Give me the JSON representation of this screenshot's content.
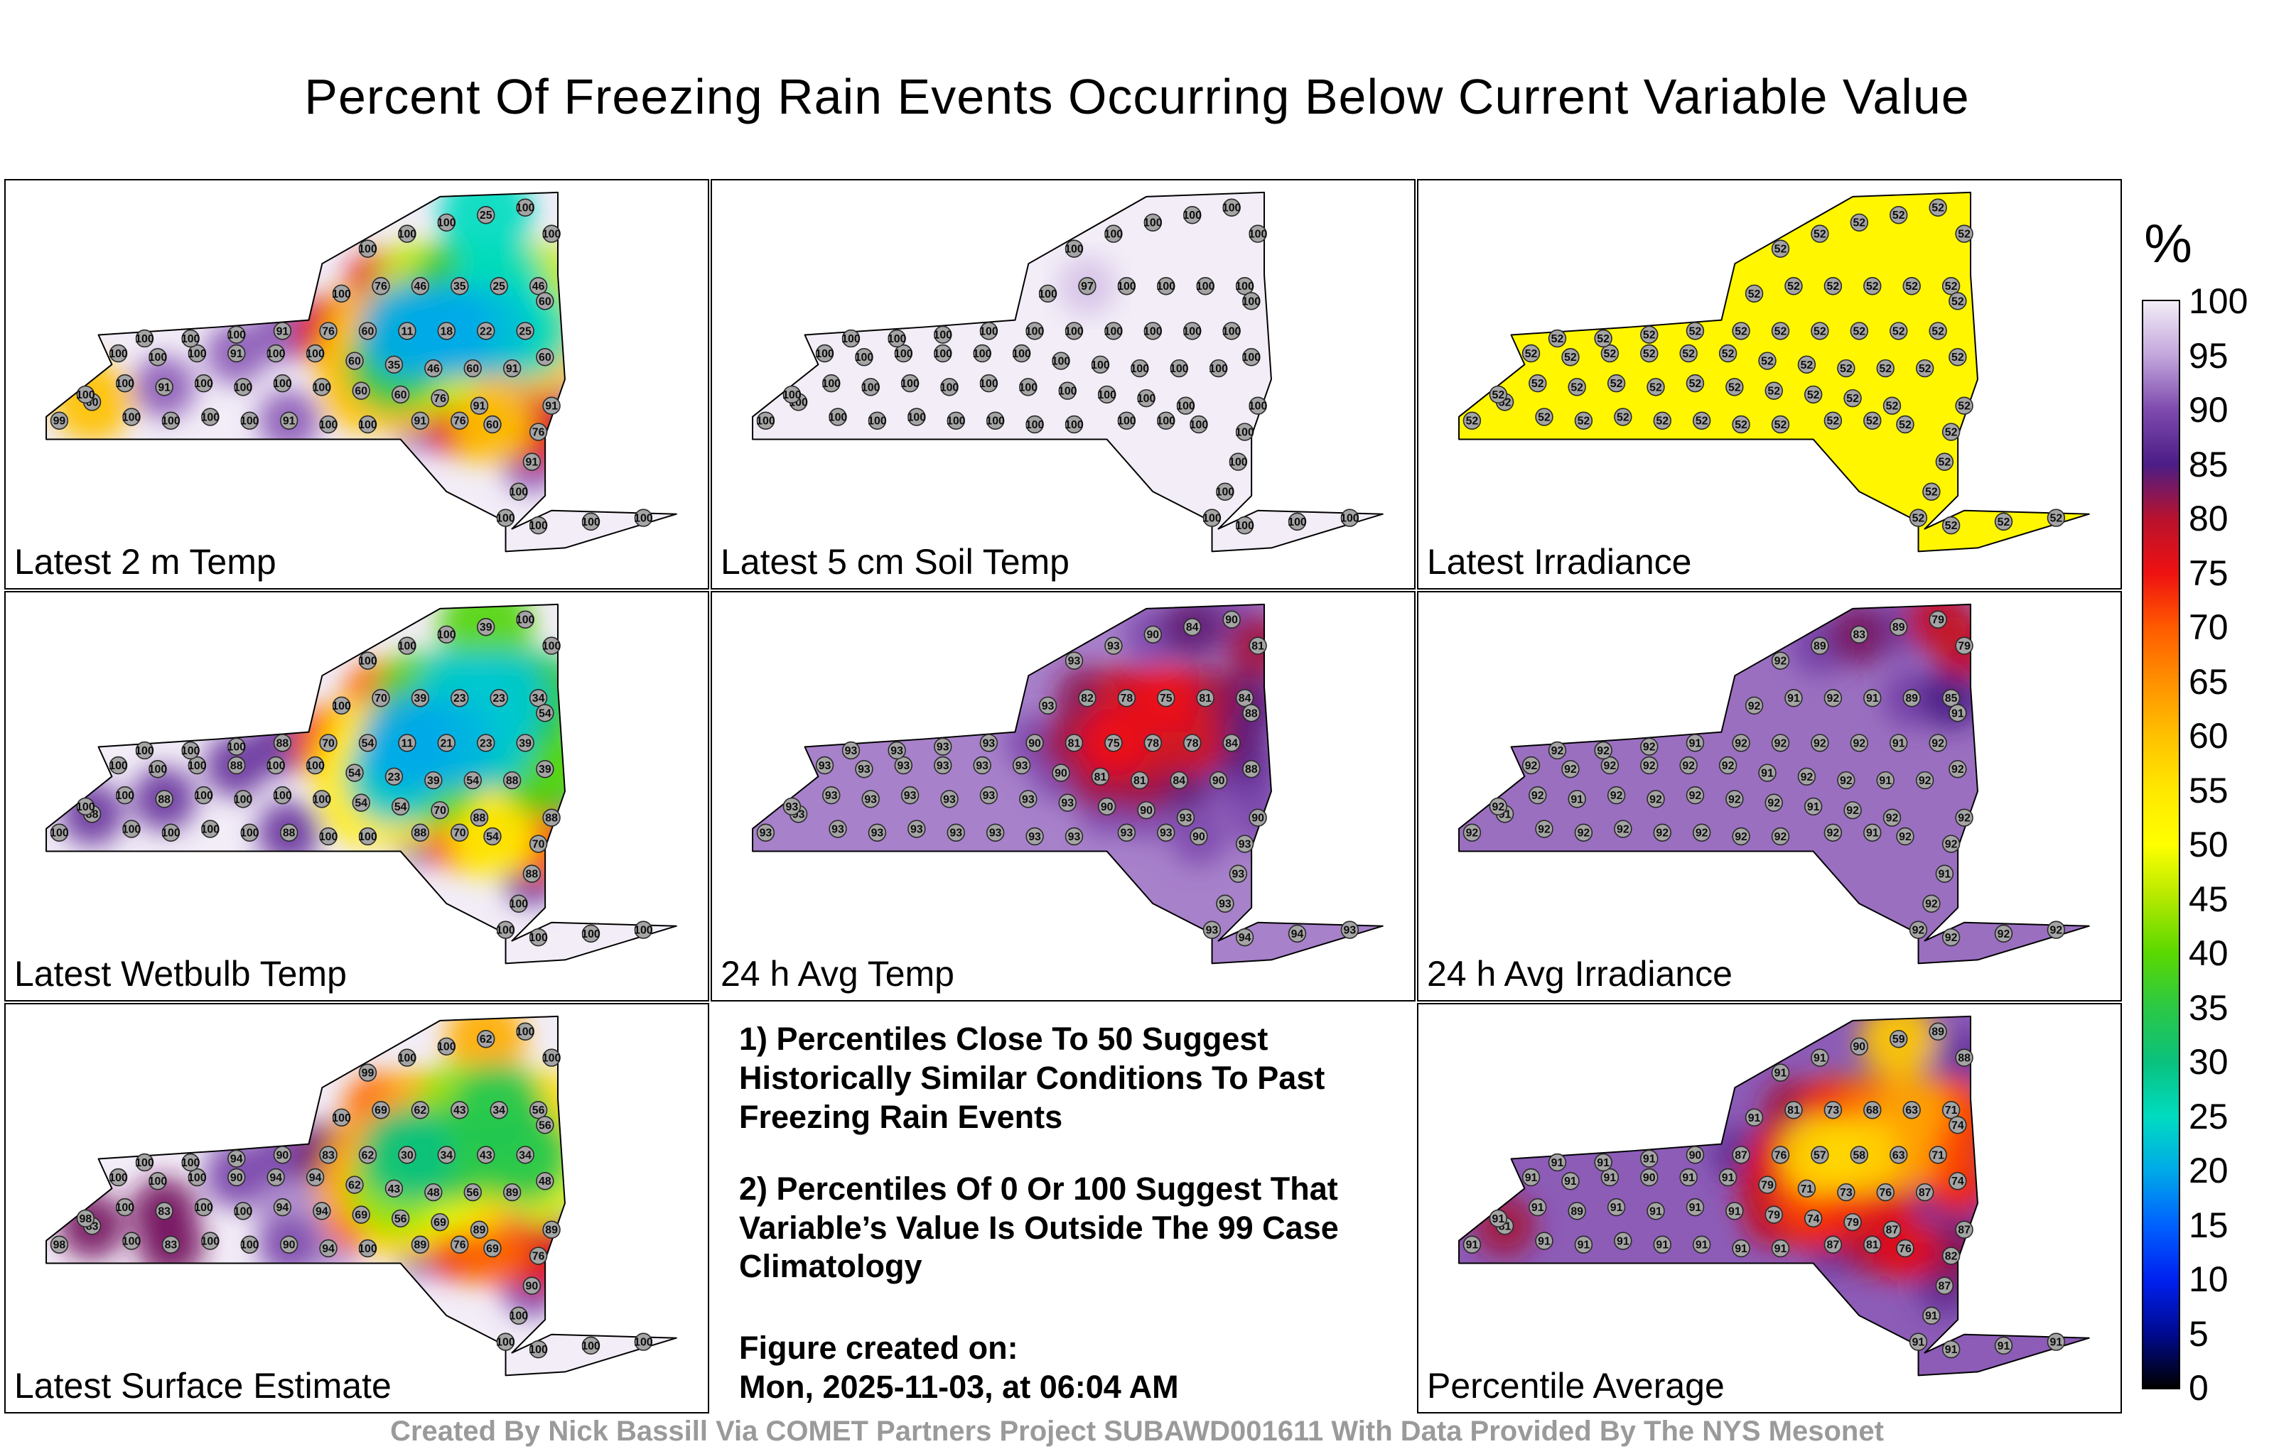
{
  "title": "Percent Of Freezing Rain Events Occurring Below Current Variable Value",
  "footer": "Created By Nick Bassill Via COMET Partners Project SUBAWD001611 With Data Provided By The NYS Mesonet",
  "colorbar": {
    "label": "%",
    "ticks": [
      100,
      95,
      90,
      85,
      80,
      75,
      70,
      65,
      60,
      55,
      50,
      45,
      40,
      35,
      30,
      25,
      20,
      15,
      10,
      5,
      0
    ],
    "stops": [
      {
        "v": 100,
        "c": "#f2edf7"
      },
      {
        "v": 95,
        "c": "#c3a6dc"
      },
      {
        "v": 90,
        "c": "#7e4aae"
      },
      {
        "v": 85,
        "c": "#4b1d86"
      },
      {
        "v": 80,
        "c": "#b8122e"
      },
      {
        "v": 75,
        "c": "#ee1111"
      },
      {
        "v": 70,
        "c": "#ff5a00"
      },
      {
        "v": 65,
        "c": "#ff9000"
      },
      {
        "v": 60,
        "c": "#ffc100"
      },
      {
        "v": 55,
        "c": "#ffe800"
      },
      {
        "v": 50,
        "c": "#ffff00"
      },
      {
        "v": 45,
        "c": "#b2e800"
      },
      {
        "v": 40,
        "c": "#5ad800"
      },
      {
        "v": 35,
        "c": "#2bc845"
      },
      {
        "v": 30,
        "c": "#0ac17d"
      },
      {
        "v": 25,
        "c": "#00dcc0"
      },
      {
        "v": 20,
        "c": "#00a9e8"
      },
      {
        "v": 15,
        "c": "#0061ff"
      },
      {
        "v": 10,
        "c": "#0021f0"
      },
      {
        "v": 5,
        "c": "#000a90"
      },
      {
        "v": 0,
        "c": "#000000"
      }
    ]
  },
  "notes": {
    "note1": "1) Percentiles Close To 50 Suggest Historically Similar Conditions To Past Freezing Rain Events",
    "note2": "2) Percentiles Of 0 Or 100 Suggest That Variable’s Value Is Outside The 99 Case Climatology",
    "created_label": "Figure created on:",
    "created_value": "Mon, 2025-11-03, at 06:04 AM"
  },
  "stations": [
    [
      5,
      62
    ],
    [
      10,
      57
    ],
    [
      16,
      61
    ],
    [
      22,
      62
    ],
    [
      28,
      61
    ],
    [
      34,
      62
    ],
    [
      40,
      62
    ],
    [
      46,
      63
    ],
    [
      52,
      63
    ],
    [
      9,
      55
    ],
    [
      15,
      52
    ],
    [
      21,
      53
    ],
    [
      27,
      52
    ],
    [
      33,
      53
    ],
    [
      39,
      52
    ],
    [
      45,
      53
    ],
    [
      51,
      54
    ],
    [
      57,
      55
    ],
    [
      63,
      56
    ],
    [
      69,
      58
    ],
    [
      14,
      44
    ],
    [
      20,
      45
    ],
    [
      26,
      44
    ],
    [
      32,
      44
    ],
    [
      38,
      44
    ],
    [
      44,
      44
    ],
    [
      50,
      46
    ],
    [
      56,
      47
    ],
    [
      62,
      48
    ],
    [
      68,
      48
    ],
    [
      74,
      48
    ],
    [
      79,
      45
    ],
    [
      18,
      40
    ],
    [
      25,
      40
    ],
    [
      32,
      39
    ],
    [
      39,
      38
    ],
    [
      46,
      38
    ],
    [
      52,
      38
    ],
    [
      58,
      38
    ],
    [
      64,
      38
    ],
    [
      70,
      38
    ],
    [
      76,
      38
    ],
    [
      48,
      28
    ],
    [
      54,
      26
    ],
    [
      60,
      26
    ],
    [
      66,
      26
    ],
    [
      72,
      26
    ],
    [
      78,
      26
    ],
    [
      52,
      16
    ],
    [
      58,
      12
    ],
    [
      64,
      9
    ],
    [
      70,
      7
    ],
    [
      76,
      5
    ],
    [
      80,
      12
    ],
    [
      79,
      30
    ],
    [
      80,
      58
    ],
    [
      78,
      65
    ],
    [
      77,
      73
    ],
    [
      75,
      81
    ],
    [
      73,
      88
    ],
    [
      78,
      90
    ],
    [
      86,
      89
    ],
    [
      94,
      88
    ],
    [
      71,
      63
    ],
    [
      66,
      62
    ],
    [
      60,
      62
    ]
  ],
  "panels": [
    {
      "id": "latest-2m-temp",
      "label": "Latest 2 m Temp",
      "base": 100,
      "values": [
        99,
        60,
        100,
        100,
        100,
        100,
        91,
        100,
        100,
        100,
        100,
        91,
        100,
        100,
        100,
        100,
        60,
        60,
        76,
        91,
        100,
        100,
        100,
        91,
        100,
        100,
        60,
        35,
        46,
        60,
        91,
        60,
        100,
        100,
        100,
        91,
        76,
        60,
        11,
        18,
        22,
        25,
        100,
        76,
        46,
        35,
        25,
        46,
        100,
        100,
        100,
        25,
        100,
        100,
        60,
        91,
        76,
        91,
        100,
        100,
        100,
        100,
        100,
        60,
        76,
        91
      ]
    },
    {
      "id": "latest-5cm-soil-temp",
      "label": "Latest 5 cm Soil Temp",
      "base": 100,
      "values": [
        100,
        100,
        100,
        100,
        100,
        100,
        100,
        100,
        100,
        100,
        100,
        100,
        100,
        100,
        100,
        100,
        100,
        100,
        100,
        100,
        100,
        100,
        100,
        100,
        100,
        100,
        100,
        100,
        100,
        100,
        100,
        100,
        100,
        100,
        100,
        100,
        100,
        100,
        100,
        100,
        100,
        100,
        100,
        97,
        100,
        100,
        100,
        100,
        100,
        100,
        100,
        100,
        100,
        100,
        100,
        100,
        100,
        100,
        100,
        100,
        100,
        100,
        100,
        100,
        100,
        100
      ]
    },
    {
      "id": "latest-irradiance",
      "label": "Latest Irradiance",
      "base": 52,
      "values": [
        52,
        52,
        52,
        52,
        52,
        52,
        52,
        52,
        52,
        52,
        52,
        52,
        52,
        52,
        52,
        52,
        52,
        52,
        52,
        52,
        52,
        52,
        52,
        52,
        52,
        52,
        52,
        52,
        52,
        52,
        52,
        52,
        52,
        52,
        52,
        52,
        52,
        52,
        52,
        52,
        52,
        52,
        52,
        52,
        52,
        52,
        52,
        52,
        52,
        52,
        52,
        52,
        52,
        52,
        52,
        52,
        52,
        52,
        52,
        52,
        52,
        52,
        52,
        52,
        52,
        52
      ]
    },
    {
      "id": "latest-wetbulb-temp",
      "label": "Latest Wetbulb Temp",
      "base": 100,
      "values": [
        100,
        88,
        100,
        100,
        100,
        100,
        88,
        100,
        100,
        100,
        100,
        88,
        100,
        100,
        100,
        100,
        54,
        54,
        70,
        88,
        100,
        100,
        100,
        88,
        100,
        100,
        54,
        23,
        39,
        54,
        88,
        39,
        100,
        100,
        100,
        88,
        70,
        54,
        11,
        21,
        23,
        39,
        100,
        70,
        39,
        23,
        23,
        34,
        100,
        100,
        100,
        39,
        100,
        100,
        54,
        88,
        70,
        88,
        100,
        100,
        100,
        100,
        100,
        54,
        70,
        88
      ]
    },
    {
      "id": "24h-avg-temp",
      "label": "24 h Avg Temp",
      "base": 93,
      "values": [
        93,
        93,
        93,
        93,
        93,
        93,
        93,
        93,
        93,
        93,
        93,
        93,
        93,
        93,
        93,
        93,
        93,
        90,
        90,
        93,
        93,
        93,
        93,
        93,
        93,
        93,
        90,
        81,
        81,
        84,
        90,
        88,
        93,
        93,
        93,
        93,
        90,
        81,
        75,
        78,
        78,
        84,
        93,
        82,
        78,
        75,
        81,
        84,
        93,
        93,
        90,
        84,
        90,
        81,
        88,
        90,
        93,
        93,
        93,
        93,
        94,
        94,
        93,
        90,
        93,
        93
      ]
    },
    {
      "id": "24h-avg-irradiance",
      "label": "24 h Avg Irradiance",
      "base": 92,
      "values": [
        92,
        91,
        92,
        92,
        92,
        92,
        92,
        92,
        92,
        92,
        92,
        91,
        92,
        92,
        92,
        92,
        92,
        91,
        92,
        92,
        92,
        92,
        92,
        92,
        92,
        92,
        91,
        92,
        92,
        91,
        92,
        92,
        92,
        92,
        92,
        91,
        92,
        92,
        92,
        92,
        91,
        92,
        92,
        91,
        92,
        91,
        89,
        85,
        92,
        89,
        83,
        89,
        79,
        79,
        91,
        92,
        92,
        91,
        92,
        92,
        92,
        92,
        92,
        92,
        91,
        92
      ]
    },
    {
      "id": "latest-surface-estimate",
      "label": "Latest Surface Estimate",
      "base": 100,
      "values": [
        98,
        83,
        100,
        83,
        100,
        100,
        90,
        94,
        100,
        98,
        100,
        83,
        100,
        100,
        94,
        94,
        69,
        56,
        69,
        89,
        100,
        100,
        100,
        90,
        94,
        94,
        62,
        43,
        48,
        56,
        89,
        48,
        100,
        100,
        94,
        90,
        83,
        62,
        30,
        34,
        43,
        34,
        100,
        69,
        62,
        43,
        34,
        56,
        99,
        100,
        100,
        62,
        100,
        100,
        56,
        89,
        76,
        90,
        100,
        100,
        100,
        100,
        100,
        69,
        76,
        89
      ]
    },
    {
      "id": "percentile-average",
      "label": "Percentile Average",
      "base": 91,
      "values": [
        91,
        81,
        91,
        91,
        91,
        91,
        91,
        91,
        91,
        91,
        91,
        89,
        91,
        91,
        91,
        91,
        79,
        74,
        79,
        87,
        91,
        91,
        91,
        90,
        91,
        91,
        79,
        71,
        73,
        76,
        87,
        74,
        91,
        91,
        91,
        90,
        87,
        76,
        57,
        58,
        63,
        71,
        91,
        81,
        73,
        68,
        63,
        71,
        91,
        91,
        90,
        59,
        89,
        88,
        74,
        87,
        82,
        87,
        91,
        91,
        91,
        91,
        91,
        76,
        81,
        87
      ]
    }
  ]
}
